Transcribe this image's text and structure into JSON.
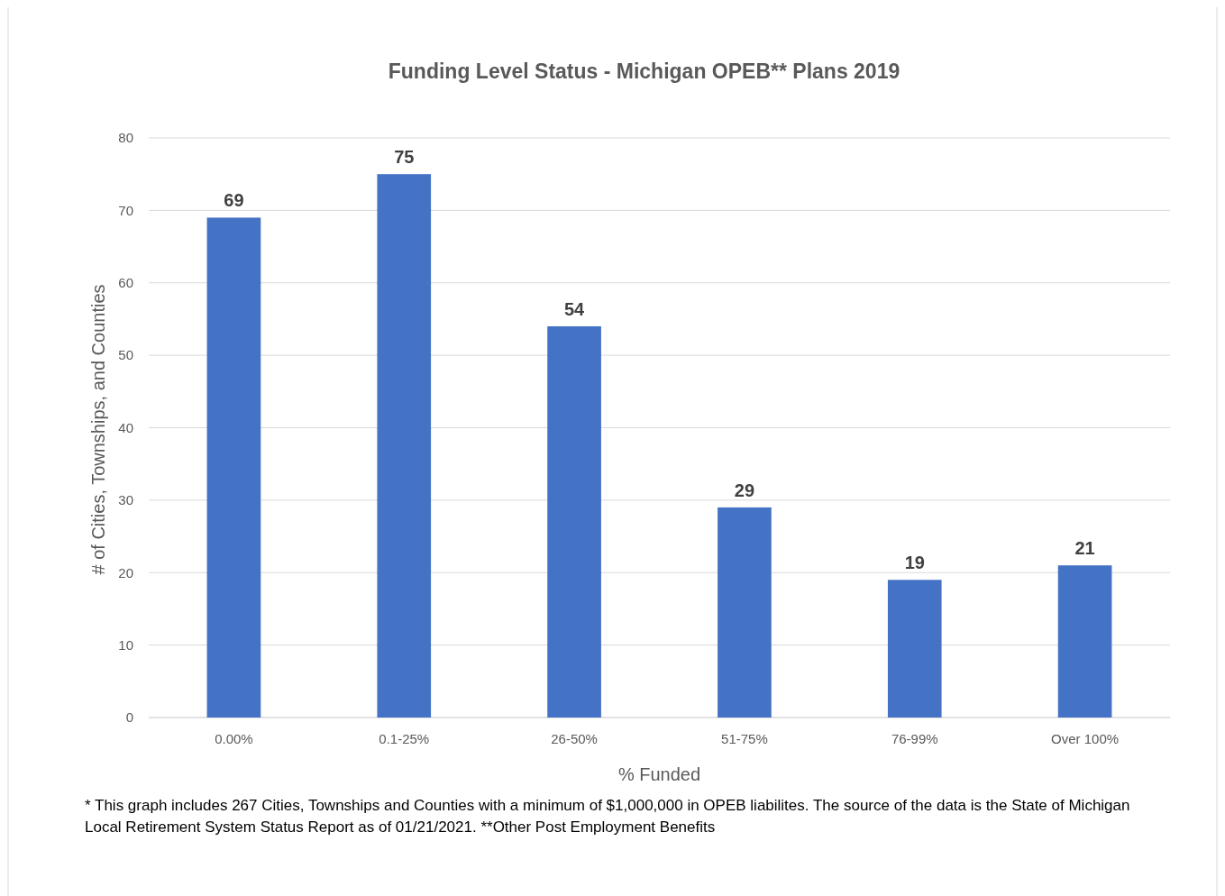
{
  "chart_data": {
    "type": "bar",
    "title": "Funding Level Status - Michigan OPEB**  Plans 2019",
    "xlabel": "% Funded",
    "ylabel": "# of Cities, Townships, and Counties",
    "categories": [
      "0.00%",
      "0.1-25%",
      "26-50%",
      "51-75%",
      "76-99%",
      "Over 100%"
    ],
    "values": [
      69,
      75,
      54,
      29,
      19,
      21
    ],
    "color": "#4472c4",
    "ylim": [
      0,
      80
    ],
    "yticks": [
      0,
      10,
      20,
      30,
      40,
      50,
      60,
      70,
      80
    ],
    "grid": "y",
    "data_labels": true,
    "annotations": [
      "*  This graph includes 267 Cities, Townships and Counties with a minimum of $1,000,000 in OPEB liabilites. The source of the data is the State of Michigan Local Retirement System Status Report as of 01/21/2021. **Other Post Employment Benefits"
    ]
  }
}
